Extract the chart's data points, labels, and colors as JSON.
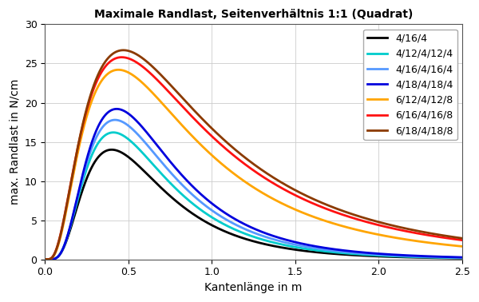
{
  "title": "Maximale Randlast, Seitenverhältnis 1:1 (Quadrat)",
  "xlabel": "Kantenlänge in m",
  "ylabel": "max. Randlast in N/cm",
  "xlim": [
    0.0,
    2.5
  ],
  "ylim": [
    0.0,
    30
  ],
  "xticks": [
    0.0,
    0.5,
    1.0,
    1.5,
    2.0,
    2.5
  ],
  "yticks": [
    0,
    5,
    10,
    15,
    20,
    25,
    30
  ],
  "series": [
    {
      "label": "4/16/4",
      "color": "#000000",
      "peak": 14.0,
      "xpeak": 0.4,
      "sigma": 0.6
    },
    {
      "label": "4/12/4/12/4",
      "color": "#00CCCC",
      "peak": 16.2,
      "xpeak": 0.41,
      "sigma": 0.6
    },
    {
      "label": "4/16/4/16/4",
      "color": "#5599FF",
      "peak": 17.8,
      "xpeak": 0.42,
      "sigma": 0.6
    },
    {
      "label": "4/18/4/18/4",
      "color": "#0000DD",
      "peak": 19.2,
      "xpeak": 0.43,
      "sigma": 0.6
    },
    {
      "label": "6/12/4/12/8",
      "color": "#FFA500",
      "peak": 24.2,
      "xpeak": 0.44,
      "sigma": 0.75
    },
    {
      "label": "6/16/4/16/8",
      "color": "#FF1111",
      "peak": 25.8,
      "xpeak": 0.46,
      "sigma": 0.78
    },
    {
      "label": "6/18/4/18/8",
      "color": "#8B3A00",
      "peak": 26.7,
      "xpeak": 0.47,
      "sigma": 0.78
    }
  ],
  "background_color": "#ffffff",
  "grid_color": "#cccccc",
  "title_fontsize": 10,
  "label_fontsize": 10,
  "tick_fontsize": 9,
  "legend_fontsize": 9,
  "line_width": 2.0
}
